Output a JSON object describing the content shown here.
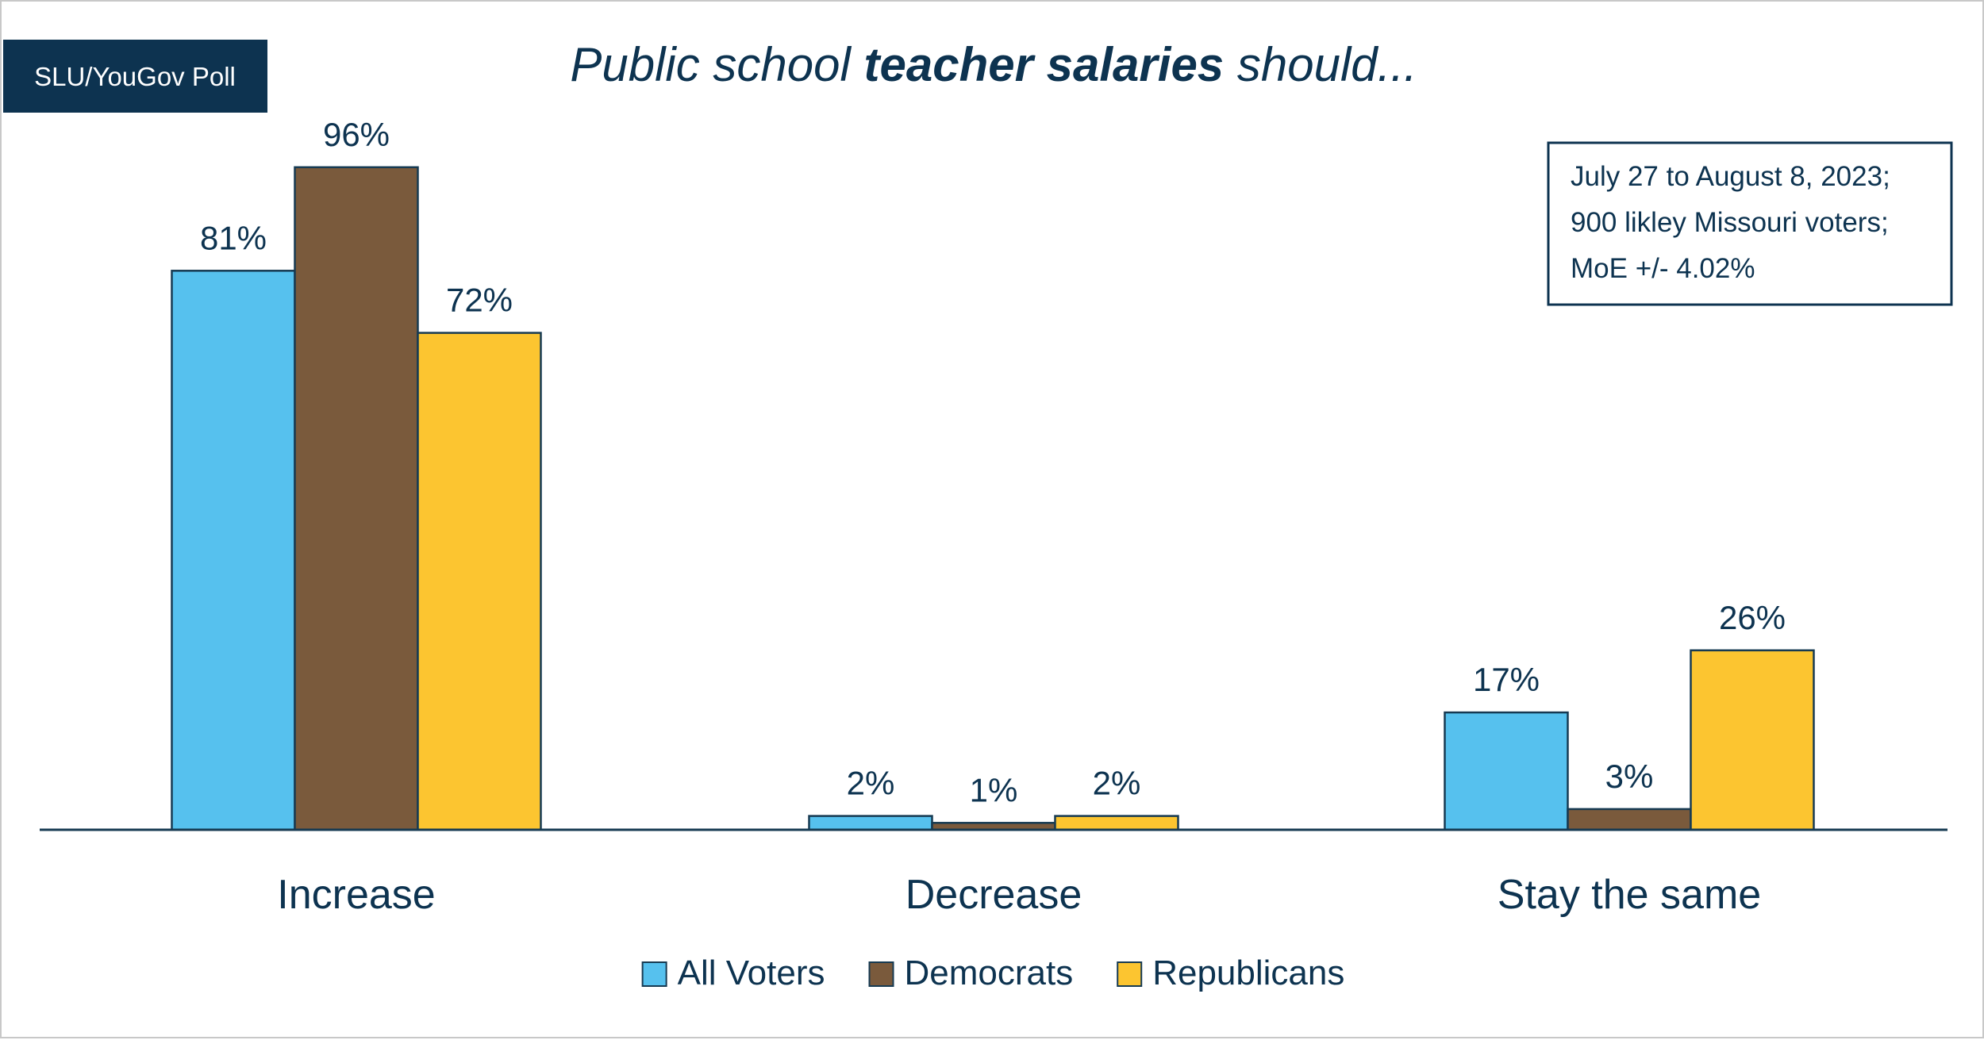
{
  "badge": "SLU/YouGov Poll",
  "title": {
    "part1": "Public school ",
    "part2": "teacher salaries",
    "part3": " should..."
  },
  "note": [
    "July 27 to August 8, 2023;",
    "900 likley Missouri voters;",
    "MoE +/- 4.02%"
  ],
  "chart_data": {
    "type": "bar",
    "title": "Public school teacher salaries should...",
    "categories": [
      "Increase",
      "Decrease",
      "Stay the same"
    ],
    "series": [
      {
        "name": "All Voters",
        "color": "#56c1ee",
        "values": [
          81,
          2,
          17
        ]
      },
      {
        "name": "Democrats",
        "color": "#7a5a3c",
        "values": [
          96,
          1,
          3
        ]
      },
      {
        "name": "Republicans",
        "color": "#fcc530",
        "values": [
          72,
          2,
          26
        ]
      }
    ],
    "value_suffix": "%",
    "ylim": [
      0,
      100
    ],
    "grid": false,
    "legend_position": "bottom-center",
    "colors": {
      "text": "#0d3350",
      "bar_outline": "#163a52",
      "badge_bg": "#0d3350"
    }
  }
}
